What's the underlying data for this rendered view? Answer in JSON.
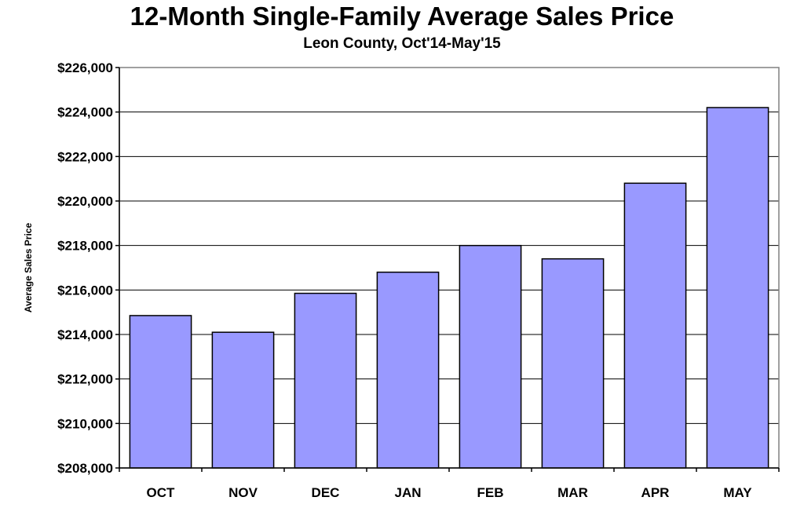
{
  "chart_data": {
    "type": "bar",
    "title": "12-Month Single-Family Average Sales Price",
    "subtitle": "Leon County, Oct'14-May'15",
    "xlabel": "",
    "ylabel": "Average Sales Price",
    "categories": [
      "OCT",
      "NOV",
      "DEC",
      "JAN",
      "FEB",
      "MAR",
      "APR",
      "MAY"
    ],
    "values": [
      214850,
      214100,
      215850,
      216800,
      218000,
      217400,
      220800,
      224200
    ],
    "ylim": [
      208000,
      226000
    ],
    "ytick_values": [
      208000,
      210000,
      212000,
      214000,
      216000,
      218000,
      220000,
      222000,
      224000,
      226000
    ],
    "ytick_labels": [
      "$208,000",
      "$210,000",
      "$212,000",
      "$214,000",
      "$216,000",
      "$218,000",
      "$220,000",
      "$222,000",
      "$224,000",
      "$226,000"
    ],
    "grid": true,
    "legend": "none",
    "colors": {
      "bar_fill": "#9999FF",
      "bar_stroke": "#000000",
      "grid": "#000000",
      "plot_border": "#808080"
    }
  }
}
